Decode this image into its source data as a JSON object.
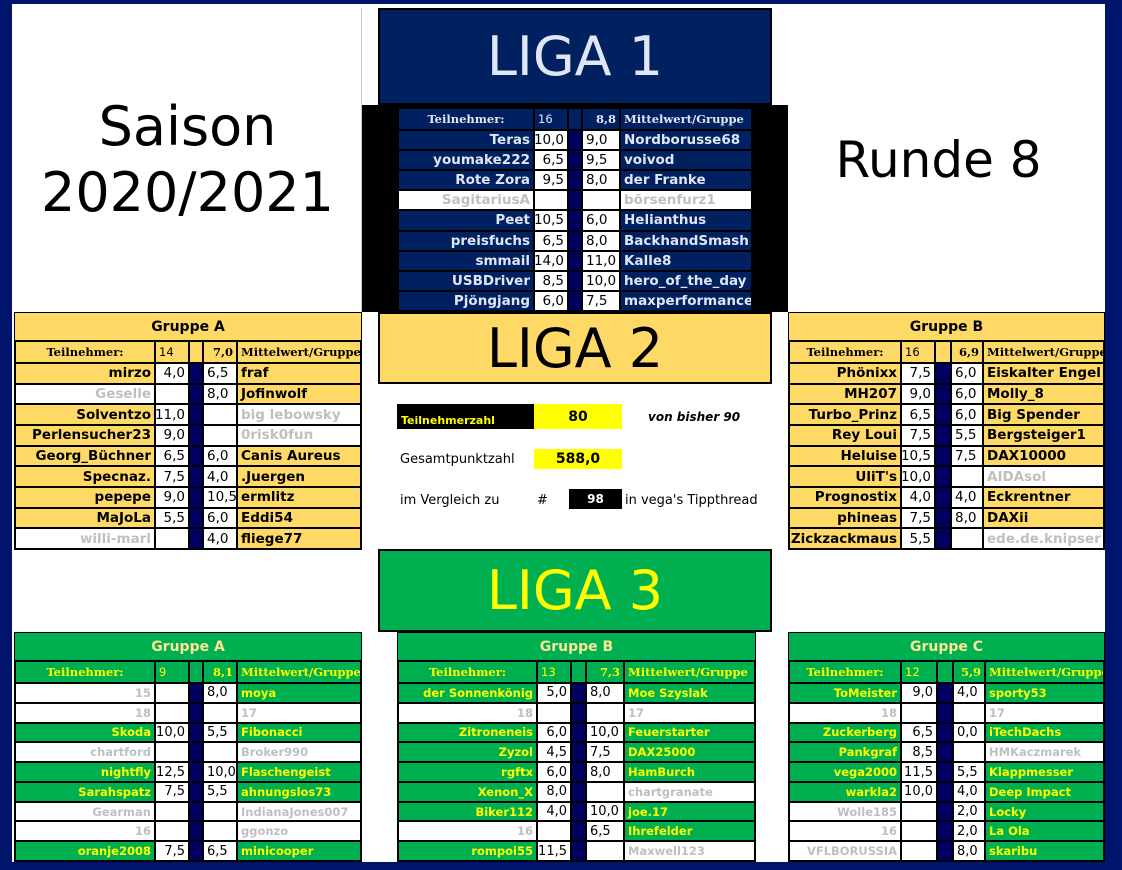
{
  "season": {
    "label": "Saison",
    "years": "2020/2021"
  },
  "round": "Runde 8",
  "colors": {
    "navy": "#002060",
    "gold": "#FFD966",
    "green": "#00B050",
    "yellow": "#FFFF00",
    "red": "#FF0000",
    "inactive_text": "#BFBFBF"
  },
  "liga1": {
    "title": "LIGA 1",
    "header": {
      "participants_label": "Teilnehmer:",
      "participants": "16",
      "average": "8,8",
      "average_label": "Mittelwert/Gruppe"
    },
    "rows": [
      {
        "l": "Teras",
        "ls": "10,0",
        "rs": "9,0",
        "r": "Nordborusse68"
      },
      {
        "l": "youmake222",
        "ls": "6,5",
        "rs": "9,5",
        "r": "voivod"
      },
      {
        "l": "Rote Zora",
        "ls": "9,5",
        "rs": "8,0",
        "r": "der Franke"
      },
      {
        "l": "SagitariusA",
        "ls": "",
        "rs": "",
        "r": "börsenfurz1"
      },
      {
        "l": "Peet",
        "ls": "10,5",
        "rs": "6,0",
        "r": "Helianthus"
      },
      {
        "l": "preisfuchs",
        "ls": "6,5",
        "rs": "8,0",
        "r": "BackhandSmash"
      },
      {
        "l": "smmail",
        "ls": "14,0",
        "rs": "11,0",
        "r": "Kalle8"
      },
      {
        "l": "USBDriver",
        "ls": "8,5",
        "rs": "10,0",
        "r": "hero_of_the_day"
      },
      {
        "l": "Pjöngjang",
        "ls": "6,0",
        "rs": "7,5",
        "r": "maxperformance"
      }
    ]
  },
  "liga2": {
    "title": "LIGA 2",
    "groups": [
      {
        "title": "Gruppe A",
        "header": {
          "participants_label": "Teilnehmer:",
          "participants": "14",
          "average": "7,0",
          "average_label": "Mittelwert/Gruppe"
        },
        "rows": [
          {
            "l": "mirzo",
            "ls": "4,0",
            "rs": "6,5",
            "r": "fraf"
          },
          {
            "l": "Geselle",
            "ls": "",
            "rs": "8,0",
            "r": "Jofinwolf"
          },
          {
            "l": "Solventzo",
            "ls": "11,0",
            "rs": "",
            "r": "big lebowsky"
          },
          {
            "l": "Perlensucher23",
            "ls": "9,0",
            "rs": "",
            "r": "0risk0fun"
          },
          {
            "l": "Georg_Büchner",
            "ls": "6,5",
            "rs": "6,0",
            "r": "Canis Aureus"
          },
          {
            "l": "Specnaz.",
            "ls": "7,5",
            "rs": "4,0",
            "r": ".Juergen"
          },
          {
            "l": "pepepe",
            "ls": "9,0",
            "rs": "10,5",
            "r": "ermlitz"
          },
          {
            "l": "MaJoLa",
            "ls": "5,5",
            "rs": "6,0",
            "r": "Eddi54"
          },
          {
            "l": "willi-marl",
            "ls": "",
            "rs": "4,0",
            "r": "fliege77"
          }
        ]
      },
      {
        "title": "Gruppe B",
        "header": {
          "participants_label": "Teilnehmer:",
          "participants": "16",
          "average": "6,9",
          "average_label": "Mittelwert/Gruppe"
        },
        "rows": [
          {
            "l": "Phönixx",
            "ls": "7,5",
            "rs": "6,0",
            "r": "Eiskalter Engel"
          },
          {
            "l": "MH207",
            "ls": "9,0",
            "rs": "6,0",
            "r": "Molly_8"
          },
          {
            "l": "Turbo_Prinz",
            "ls": "6,5",
            "rs": "6,0",
            "r": "Big Spender"
          },
          {
            "l": "Rey Loui",
            "ls": "7,5",
            "rs": "5,5",
            "r": "Bergsteiger1"
          },
          {
            "l": "Heluise",
            "ls": "10,5",
            "rs": "7,5",
            "r": "DAX10000"
          },
          {
            "l": "UliT's",
            "ls": "10,0",
            "rs": "",
            "r": "AIDAsol"
          },
          {
            "l": "Prognostix",
            "ls": "4,0",
            "rs": "4,0",
            "r": "Eckrentner"
          },
          {
            "l": "phineas",
            "ls": "7,5",
            "rs": "8,0",
            "r": "DAXii"
          },
          {
            "l": "Zickzackmaus",
            "ls": "5,5",
            "rs": "",
            "r": "ede.de.knipser"
          }
        ]
      }
    ],
    "stats": {
      "participants_label": "Teilnehmerzahl",
      "participants": "80",
      "previous": "von bisher 90",
      "total_label": "Gesamtpunktzahl",
      "total": "588,0",
      "compare_label": "im Vergleich zu",
      "hash": "#",
      "compare_value": "98",
      "compare_suffix": "in vega's Tippthread"
    }
  },
  "liga3": {
    "title": "LIGA 3",
    "groups": [
      {
        "title": "Gruppe A",
        "header": {
          "participants_label": "Teilnehmer:",
          "participants": "9",
          "average": "8,1",
          "average_label": "Mittelwert/Gruppe"
        },
        "rows": [
          {
            "l": "15",
            "ls": "",
            "rs": "8,0",
            "r": "moya"
          },
          {
            "l": "18",
            "ls": "",
            "rs": "",
            "r": "17"
          },
          {
            "l": "Skoda",
            "ls": "10,0",
            "rs": "5,5",
            "r": "Fibonacci"
          },
          {
            "l": "chartford",
            "ls": "",
            "rs": "",
            "r": "Broker990"
          },
          {
            "l": "nightfly",
            "ls": "12,5",
            "rs": "10,0",
            "r": "Flaschengeist"
          },
          {
            "l": "Sarahspatz",
            "ls": "7,5",
            "rs": "5,5",
            "r": "ahnungslos73"
          },
          {
            "l": "Gearman",
            "ls": "",
            "rs": "",
            "r": "IndianaJones007"
          },
          {
            "l": "16",
            "ls": "",
            "rs": "",
            "r": "ggonzo"
          },
          {
            "l": "oranje2008",
            "ls": "7,5",
            "rs": "6,5",
            "r": "minicooper"
          }
        ]
      },
      {
        "title": "Gruppe B",
        "header": {
          "participants_label": "Teilnehmer:",
          "participants": "13",
          "average": "7,3",
          "average_label": "Mittelwert/Gruppe"
        },
        "rows": [
          {
            "l": "der Sonnenkönig",
            "ls": "5,0",
            "rs": "8,0",
            "r": "Moe Szyslak"
          },
          {
            "l": "18",
            "ls": "",
            "rs": "",
            "r": "17"
          },
          {
            "l": "Zitroneneis",
            "ls": "6,0",
            "rs": "10,0",
            "r": "Feuerstarter"
          },
          {
            "l": "Zyzol",
            "ls": "4,5",
            "rs": "7,5",
            "r": "DAX25000"
          },
          {
            "l": "rgftx",
            "ls": "6,0",
            "rs": "8,0",
            "r": "HamBurch"
          },
          {
            "l": "Xenon_X",
            "ls": "8,0",
            "rs": "",
            "r": "chartgranate"
          },
          {
            "l": "Biker112",
            "ls": "4,0",
            "rs": "10,0",
            "r": "joe.17"
          },
          {
            "l": "16",
            "ls": "",
            "rs": "6,5",
            "r": "Ihrefelder"
          },
          {
            "l": "rompoi55",
            "ls": "11,5",
            "rs": "",
            "r": "Maxwell123"
          }
        ]
      },
      {
        "title": "Gruppe C",
        "header": {
          "participants_label": "Teilnehmer:",
          "participants": "12",
          "average": "5,9",
          "average_label": "Mittelwert/Gruppe"
        },
        "rows": [
          {
            "l": "ToMeister",
            "ls": "9,0",
            "rs": "4,0",
            "r": "sporty53"
          },
          {
            "l": "18",
            "ls": "",
            "rs": "",
            "r": "17"
          },
          {
            "l": "Zuckerberg",
            "ls": "6,5",
            "rs": "0,0",
            "r": "iTechDachs"
          },
          {
            "l": "Pankgraf",
            "ls": "8,5",
            "rs": "",
            "r": "HMKaczmarek"
          },
          {
            "l": "vega2000",
            "ls": "11,5",
            "rs": "5,5",
            "r": "Klappmesser"
          },
          {
            "l": "warkla2",
            "ls": "10,0",
            "rs": "4,0",
            "r": "Deep Impact"
          },
          {
            "l": "Wolle185",
            "ls": "",
            "rs": "2,0",
            "r": "Locky"
          },
          {
            "l": "16",
            "ls": "",
            "rs": "2,0",
            "r": "La Ola"
          },
          {
            "l": "VFLBORUSSIA",
            "ls": "",
            "rs": "8,0",
            "r": "skaribu"
          }
        ]
      }
    ]
  }
}
